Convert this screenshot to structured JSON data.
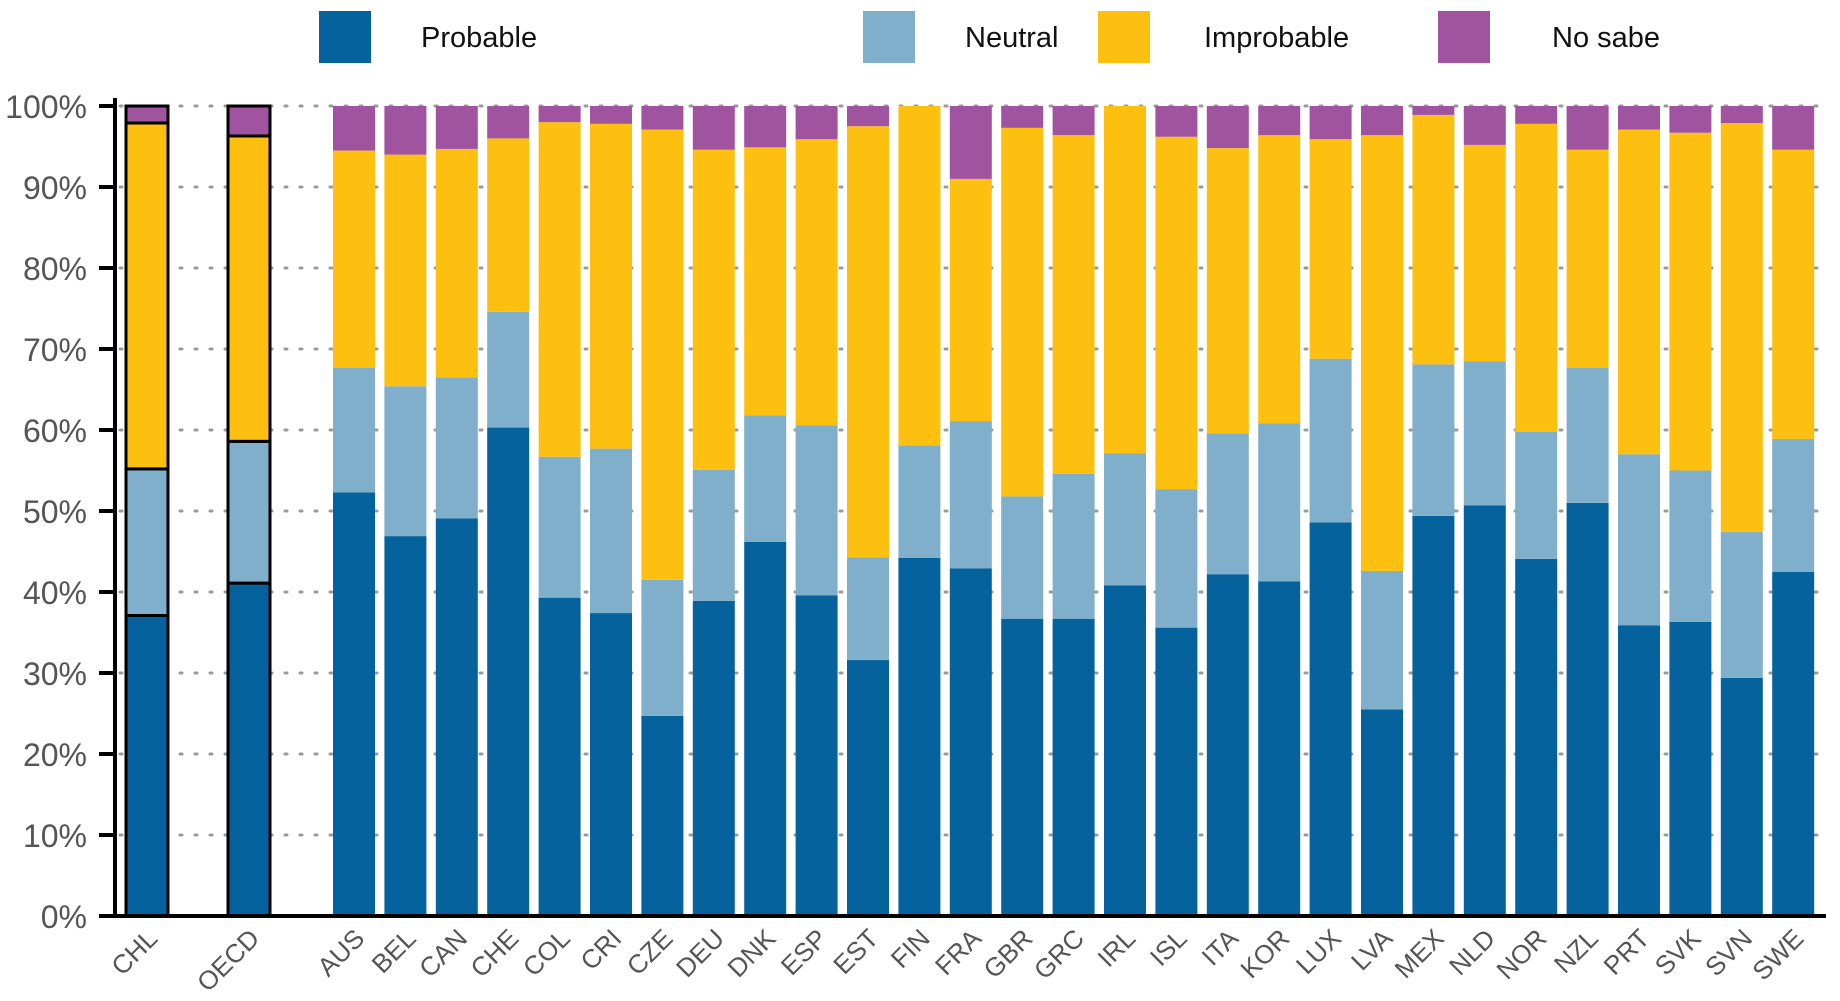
{
  "chart_data": {
    "type": "bar",
    "stacked": true,
    "title": "",
    "xlabel": "",
    "ylabel": "",
    "ylim": [
      0,
      100
    ],
    "yticks": [
      "0%",
      "10%",
      "20%",
      "30%",
      "40%",
      "50%",
      "60%",
      "70%",
      "80%",
      "90%",
      "100%"
    ],
    "grid": "horizontal dotted",
    "legend_position": "top",
    "highlighted_categories": [
      "CHL",
      "OECD"
    ],
    "categories": [
      "CHL",
      "OECD",
      "AUS",
      "BEL",
      "CAN",
      "CHE",
      "COL",
      "CRI",
      "CZE",
      "DEU",
      "DNK",
      "ESP",
      "EST",
      "FIN",
      "FRA",
      "GBR",
      "GRC",
      "IRL",
      "ISL",
      "ITA",
      "KOR",
      "LUX",
      "LVA",
      "MEX",
      "NLD",
      "NOR",
      "NZL",
      "PRT",
      "SVK",
      "SVN",
      "SWE"
    ],
    "series": [
      {
        "name": "Probable",
        "color": "#05629c",
        "values": [
          37.1,
          41.1,
          52.3,
          46.9,
          49.1,
          60.3,
          39.3,
          37.4,
          24.7,
          38.9,
          46.2,
          39.6,
          31.6,
          44.2,
          42.9,
          36.7,
          36.7,
          40.8,
          35.6,
          42.2,
          41.3,
          48.6,
          25.5,
          49.4,
          50.7,
          44.1,
          51.0,
          35.9,
          36.3,
          29.4,
          42.5
        ]
      },
      {
        "name": "Neutral",
        "color": "#7fafca",
        "values": [
          18.1,
          17.5,
          15.4,
          18.5,
          17.4,
          14.3,
          17.4,
          20.3,
          16.8,
          16.2,
          15.6,
          21.0,
          12.7,
          13.9,
          18.2,
          15.1,
          17.9,
          16.3,
          17.1,
          17.4,
          19.5,
          20.2,
          17.1,
          18.7,
          17.8,
          15.7,
          16.7,
          21.1,
          18.7,
          18.0,
          16.4
        ]
      },
      {
        "name": "Improbable",
        "color": "#fec010",
        "values": [
          42.7,
          37.7,
          26.8,
          28.6,
          28.2,
          21.4,
          41.3,
          40.1,
          55.6,
          39.5,
          33.1,
          35.3,
          53.2,
          41.9,
          29.9,
          45.5,
          41.8,
          42.9,
          43.5,
          35.2,
          35.6,
          27.1,
          53.8,
          30.8,
          26.7,
          38.0,
          26.9,
          40.1,
          41.7,
          50.5,
          35.7
        ]
      },
      {
        "name": "No sabe",
        "color": "#a0549f",
        "values": [
          2.1,
          3.7,
          5.5,
          6.0,
          5.3,
          4.0,
          2.0,
          2.2,
          2.9,
          5.4,
          5.1,
          4.1,
          2.5,
          0.0,
          9.0,
          2.7,
          3.6,
          0.0,
          3.8,
          5.2,
          3.6,
          4.1,
          3.6,
          1.1,
          4.8,
          2.2,
          5.4,
          2.9,
          3.3,
          2.1,
          5.4
        ]
      }
    ]
  }
}
